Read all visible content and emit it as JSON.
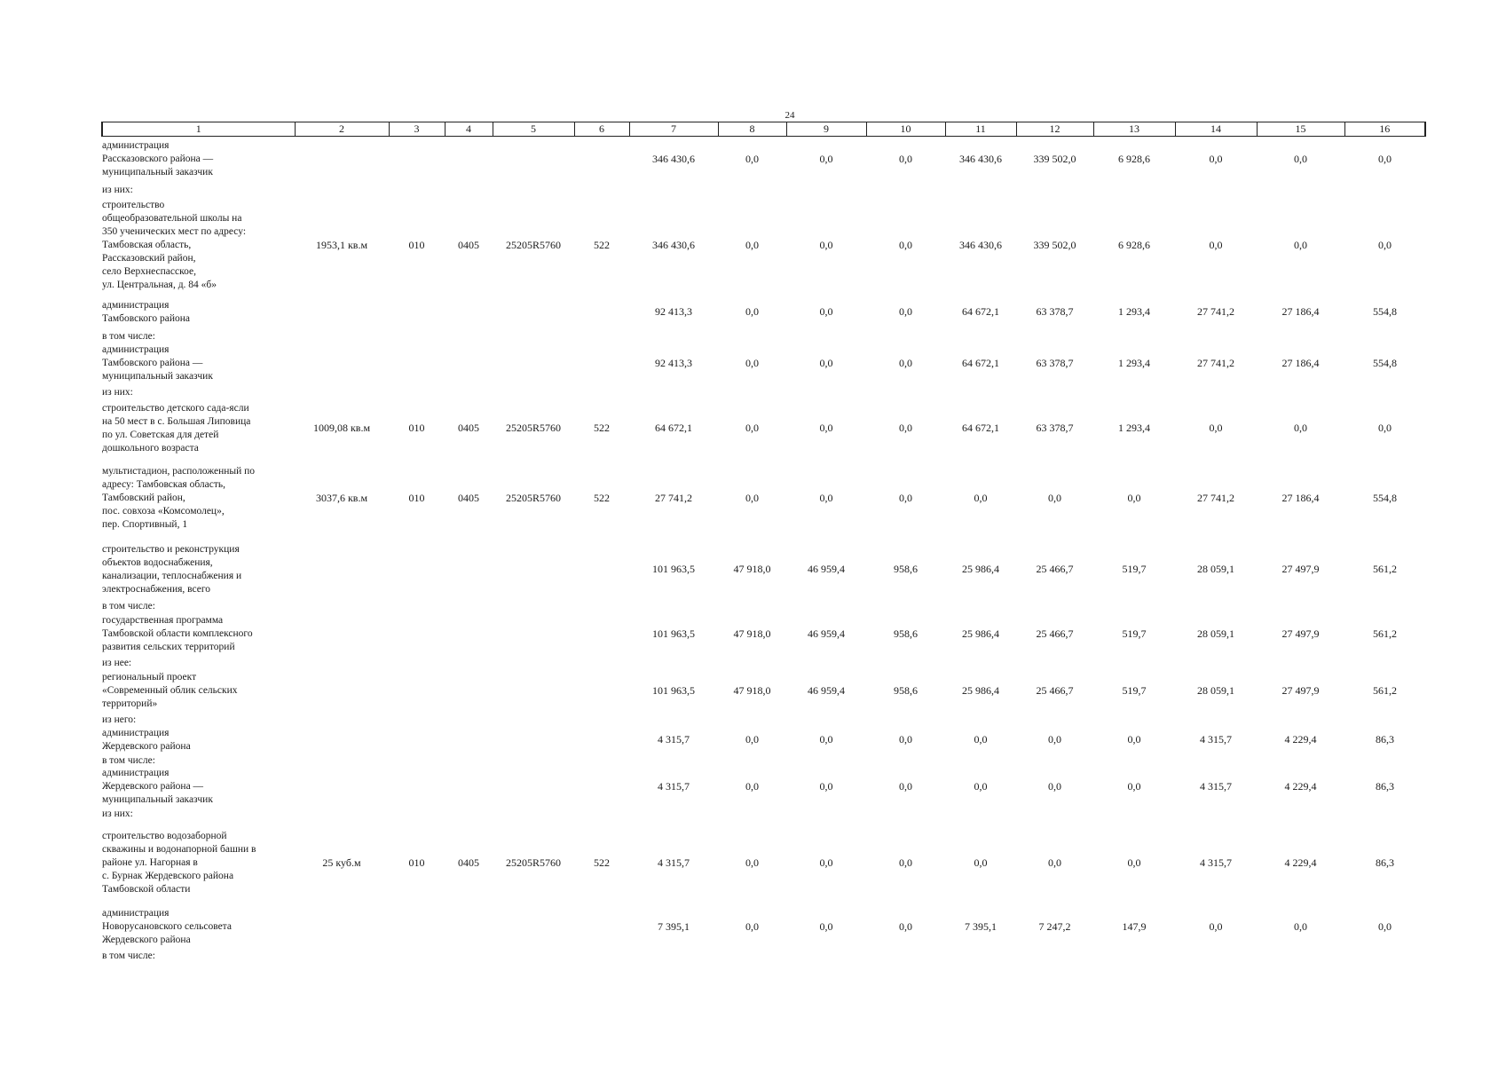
{
  "page_number": "24",
  "header": [
    "1",
    "2",
    "3",
    "4",
    "5",
    "6",
    "7",
    "8",
    "9",
    "10",
    "11",
    "12",
    "13",
    "14",
    "15",
    "16"
  ],
  "rows": [
    {
      "kind": "data",
      "h": 52,
      "name": "администрация\nРассказовского района —\nмуниципальный заказчик",
      "cells": [
        "",
        "",
        "",
        "",
        "",
        "346 430,6",
        "0,0",
        "0,0",
        "0,0",
        "346 430,6",
        "339 502,0",
        "6 928,6",
        "0,0",
        "0,0",
        "0,0"
      ]
    },
    {
      "kind": "sub",
      "h": 16,
      "name": "из них:"
    },
    {
      "kind": "data",
      "h": 110,
      "name": "строительство\nобщеобразовательной школы на\n350 ученических мест по адресу:\nТамбовская область,\nРассказовский район,\nсело Верхнеспасское,\nул. Центральная, д. 84 «б»",
      "cells": [
        "1953,1 кв.м",
        "010",
        "0405",
        "25205R5760",
        "522",
        "346 430,6",
        "0,0",
        "0,0",
        "0,0",
        "346 430,6",
        "339 502,0",
        "6 928,6",
        "0,0",
        "0,0",
        "0,0"
      ]
    },
    {
      "kind": "data",
      "h": 40,
      "name": "администрация\nТамбовского района",
      "cells": [
        "",
        "",
        "",
        "",
        "",
        "92 413,3",
        "0,0",
        "0,0",
        "0,0",
        "64 672,1",
        "63 378,7",
        "1 293,4",
        "27 741,2",
        "27 186,4",
        "554,8"
      ]
    },
    {
      "kind": "sub",
      "h": 14,
      "name": "в том числе:"
    },
    {
      "kind": "data",
      "h": 48,
      "name": "администрация\nТамбовского района —\nмуниципальный заказчик",
      "cells": [
        "",
        "",
        "",
        "",
        "",
        "92 413,3",
        "0,0",
        "0,0",
        "0,0",
        "64 672,1",
        "63 378,7",
        "1 293,4",
        "27 741,2",
        "27 186,4",
        "554,8"
      ]
    },
    {
      "kind": "sub",
      "h": 16,
      "name": "из них:"
    },
    {
      "kind": "data",
      "h": 66,
      "name": "строительство детского сада-ясли\nна 50 мест в с. Большая Липовица\nпо ул. Советская для детей\nдошкольного возраста",
      "cells": [
        "1009,08 кв.м",
        "010",
        "0405",
        "25205R5760",
        "522",
        "64 672,1",
        "0,0",
        "0,0",
        "0,0",
        "64 672,1",
        "63 378,7",
        "1 293,4",
        "0,0",
        "0,0",
        "0,0"
      ]
    },
    {
      "kind": "data",
      "h": 92,
      "name": "мультистадион, расположенный по\nадресу: Тамбовская область,\nТамбовский район,\nпос. совхоза «Комсомолец»,\nпер. Спортивный, 1",
      "cells": [
        "3037,6 кв.м",
        "010",
        "0405",
        "25205R5760",
        "522",
        "27 741,2",
        "0,0",
        "0,0",
        "0,0",
        "0,0",
        "0,0",
        "0,0",
        "27 741,2",
        "27 186,4",
        "554,8"
      ]
    },
    {
      "kind": "data",
      "h": 68,
      "name": "строительство и реконструкция\nобъектов водоснабжения,\nканализации, теплоснабжения и\nэлектроснабжения, всего",
      "cells": [
        "",
        "",
        "",
        "",
        "",
        "101 963,5",
        "47 918,0",
        "46 959,4",
        "958,6",
        "25 986,4",
        "25 466,7",
        "519,7",
        "28 059,1",
        "27 497,9",
        "561,2"
      ]
    },
    {
      "kind": "sub",
      "h": 14,
      "name": "в том числе:"
    },
    {
      "kind": "data",
      "h": 50,
      "name": "государственная программа\nТамбовской области комплексного\nразвития сельских территорий",
      "cells": [
        "",
        "",
        "",
        "",
        "",
        "101 963,5",
        "47 918,0",
        "46 959,4",
        "958,6",
        "25 986,4",
        "25 466,7",
        "519,7",
        "28 059,1",
        "27 497,9",
        "561,2"
      ]
    },
    {
      "kind": "sub",
      "h": 14,
      "name": "из нее:"
    },
    {
      "kind": "data",
      "h": 50,
      "name": "региональный проект\n«Современный облик сельских\nтерриторий»",
      "cells": [
        "",
        "",
        "",
        "",
        "",
        "101 963,5",
        "47 918,0",
        "46 959,4",
        "958,6",
        "25 986,4",
        "25 466,7",
        "519,7",
        "28 059,1",
        "27 497,9",
        "561,2"
      ]
    },
    {
      "kind": "sub",
      "h": 14,
      "name": "из него:"
    },
    {
      "kind": "data",
      "h": 32,
      "name": "администрация\nЖердевского района",
      "cells": [
        "",
        "",
        "",
        "",
        "",
        "4 315,7",
        "0,0",
        "0,0",
        "0,0",
        "0,0",
        "0,0",
        "0,0",
        "4 315,7",
        "4 229,4",
        "86,3"
      ]
    },
    {
      "kind": "sub",
      "h": 14,
      "name": "в том числе:"
    },
    {
      "kind": "data",
      "h": 44,
      "name": "администрация\nЖердевского района —\nмуниципальный заказчик",
      "cells": [
        "",
        "",
        "",
        "",
        "",
        "4 315,7",
        "0,0",
        "0,0",
        "0,0",
        "0,0",
        "0,0",
        "0,0",
        "4 315,7",
        "4 229,4",
        "86,3"
      ]
    },
    {
      "kind": "sub",
      "h": 16,
      "name": "из них:"
    },
    {
      "kind": "data",
      "h": 96,
      "name": "строительство водозаборной\nскважины и водонапорной башни в\nрайоне ул. Нагорная в\nс. Бурнак Жердевского района\nТамбовской области",
      "cells": [
        "25 куб.м",
        "010",
        "0405",
        "25205R5760",
        "522",
        "4 315,7",
        "0,0",
        "0,0",
        "0,0",
        "0,0",
        "0,0",
        "0,0",
        "4 315,7",
        "4 229,4",
        "86,3"
      ]
    },
    {
      "kind": "data",
      "h": 48,
      "name": "администрация\nНоворусановского сельсовета\nЖердевского района",
      "cells": [
        "",
        "",
        "",
        "",
        "",
        "7 395,1",
        "0,0",
        "0,0",
        "0,0",
        "7 395,1",
        "7 247,2",
        "147,9",
        "0,0",
        "0,0",
        "0,0"
      ]
    },
    {
      "kind": "sub",
      "h": 16,
      "name": "в том числе:"
    }
  ]
}
